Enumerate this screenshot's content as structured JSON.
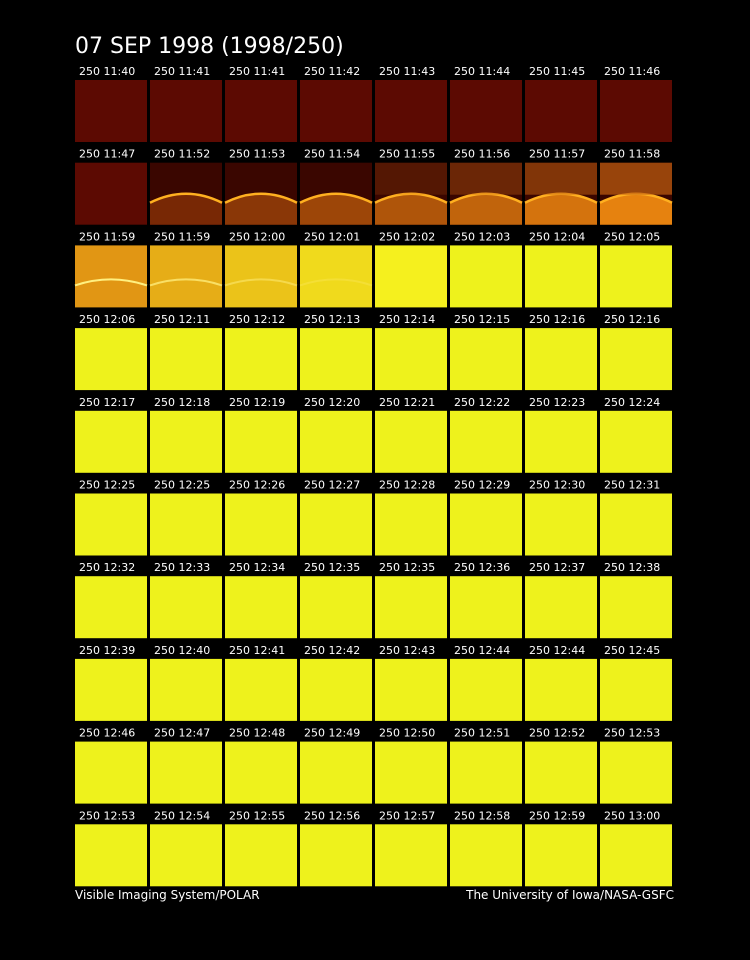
{
  "header": {
    "title": "07 SEP 1998  (1998/250)"
  },
  "tiles": [
    {
      "label": "250 11:40"
    },
    {
      "label": "250 11:41"
    },
    {
      "label": "250 11:41"
    },
    {
      "label": "250 11:42"
    },
    {
      "label": "250 11:43"
    },
    {
      "label": "250 11:44"
    },
    {
      "label": "250 11:45"
    },
    {
      "label": "250 11:46"
    },
    {
      "label": "250 11:47"
    },
    {
      "label": "250 11:52"
    },
    {
      "label": "250 11:53"
    },
    {
      "label": "250 11:54"
    },
    {
      "label": "250 11:55"
    },
    {
      "label": "250 11:56"
    },
    {
      "label": "250 11:57"
    },
    {
      "label": "250 11:58"
    },
    {
      "label": "250 11:59"
    },
    {
      "label": "250 11:59"
    },
    {
      "label": "250 12:00"
    },
    {
      "label": "250 12:01"
    },
    {
      "label": "250 12:02"
    },
    {
      "label": "250 12:03"
    },
    {
      "label": "250 12:04"
    },
    {
      "label": "250 12:05"
    },
    {
      "label": "250 12:06"
    },
    {
      "label": "250 12:11"
    },
    {
      "label": "250 12:12"
    },
    {
      "label": "250 12:13"
    },
    {
      "label": "250 12:14"
    },
    {
      "label": "250 12:15"
    },
    {
      "label": "250 12:16"
    },
    {
      "label": "250 12:16"
    },
    {
      "label": "250 12:17"
    },
    {
      "label": "250 12:18"
    },
    {
      "label": "250 12:19"
    },
    {
      "label": "250 12:20"
    },
    {
      "label": "250 12:21"
    },
    {
      "label": "250 12:22"
    },
    {
      "label": "250 12:23"
    },
    {
      "label": "250 12:24"
    },
    {
      "label": "250 12:25"
    },
    {
      "label": "250 12:25"
    },
    {
      "label": "250 12:26"
    },
    {
      "label": "250 12:27"
    },
    {
      "label": "250 12:28"
    },
    {
      "label": "250 12:29"
    },
    {
      "label": "250 12:30"
    },
    {
      "label": "250 12:31"
    },
    {
      "label": "250 12:32"
    },
    {
      "label": "250 12:33"
    },
    {
      "label": "250 12:34"
    },
    {
      "label": "250 12:35"
    },
    {
      "label": "250 12:35"
    },
    {
      "label": "250 12:36"
    },
    {
      "label": "250 12:37"
    },
    {
      "label": "250 12:38"
    },
    {
      "label": "250 12:39"
    },
    {
      "label": "250 12:40"
    },
    {
      "label": "250 12:41"
    },
    {
      "label": "250 12:42"
    },
    {
      "label": "250 12:43"
    },
    {
      "label": "250 12:44"
    },
    {
      "label": "250 12:44"
    },
    {
      "label": "250 12:45"
    },
    {
      "label": "250 12:46"
    },
    {
      "label": "250 12:47"
    },
    {
      "label": "250 12:48"
    },
    {
      "label": "250 12:49"
    },
    {
      "label": "250 12:50"
    },
    {
      "label": "250 12:51"
    },
    {
      "label": "250 12:52"
    },
    {
      "label": "250 12:53"
    },
    {
      "label": "250 12:53"
    },
    {
      "label": "250 12:54"
    },
    {
      "label": "250 12:55"
    },
    {
      "label": "250 12:56"
    },
    {
      "label": "250 12:57"
    },
    {
      "label": "250 12:58"
    },
    {
      "label": "250 12:59"
    },
    {
      "label": "250 13:00"
    }
  ],
  "footer": {
    "left": "Visible Imaging System/POLAR",
    "right": "The University of Iowa/NASA-GSFC"
  }
}
